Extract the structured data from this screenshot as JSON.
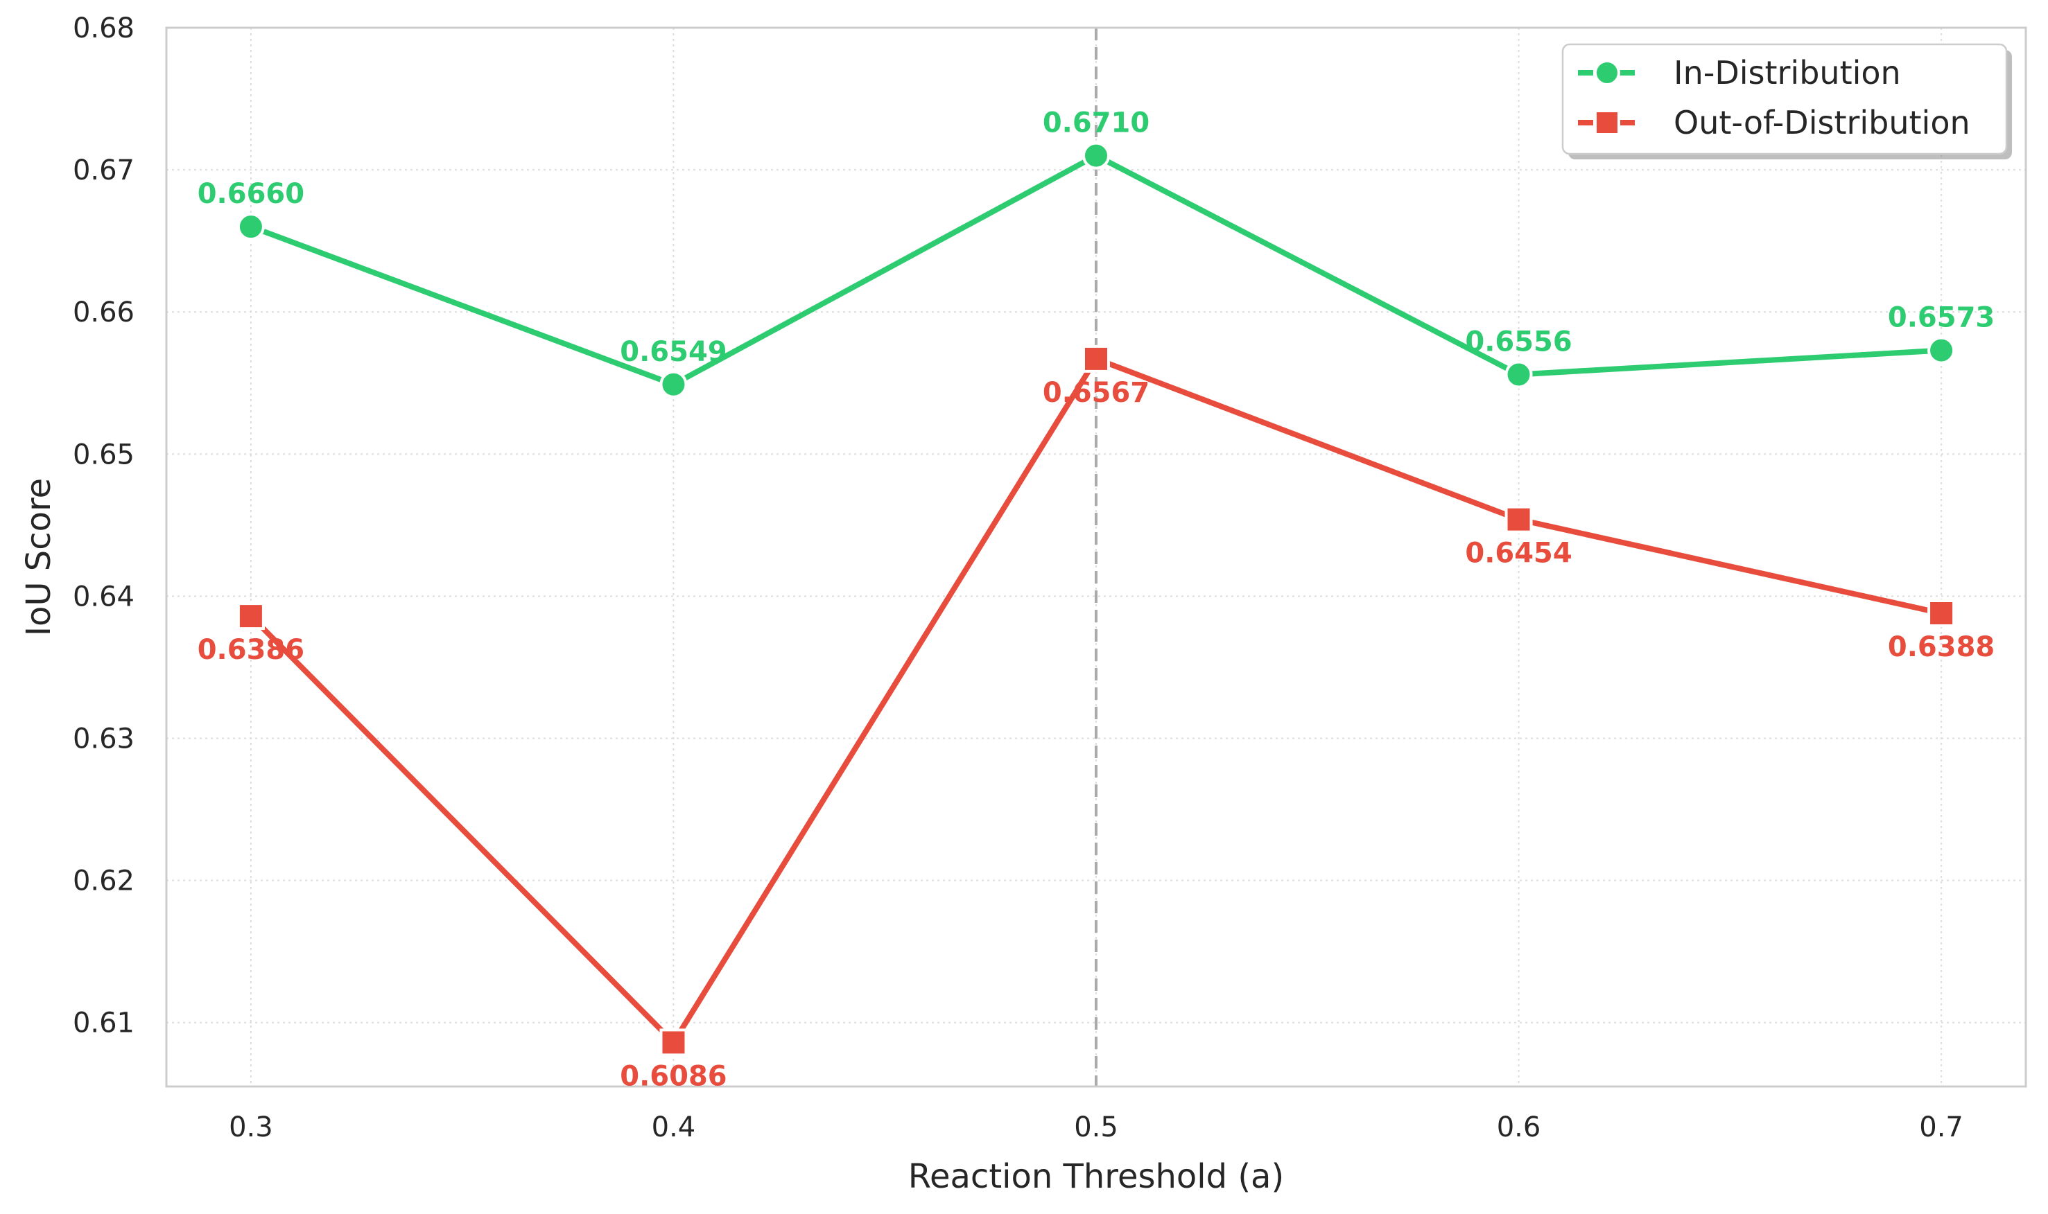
{
  "chart_data": {
    "type": "line",
    "title": "",
    "xlabel": "Reaction Threshold (a)",
    "ylabel": "IoU Score",
    "x": [
      0.3,
      0.4,
      0.5,
      0.6,
      0.7
    ],
    "x_tick_labels": [
      "0.3",
      "0.4",
      "0.5",
      "0.6",
      "0.7"
    ],
    "xlim": [
      0.28,
      0.72
    ],
    "ylim": [
      0.6055,
      0.68
    ],
    "y_ticks": [
      0.61,
      0.62,
      0.63,
      0.64,
      0.65,
      0.66,
      0.67,
      0.68
    ],
    "y_tick_labels": [
      "0.61",
      "0.62",
      "0.63",
      "0.64",
      "0.65",
      "0.66",
      "0.67",
      "0.68"
    ],
    "grid": true,
    "grid_style": "dotted",
    "reference_line": {
      "x": 0.5,
      "style": "dashed",
      "color": "#aaaaaa"
    },
    "legend_position": "top-right",
    "series": [
      {
        "name": "In-Distribution",
        "color": "#2ecc71",
        "marker": "circle",
        "values": [
          0.666,
          0.6549,
          0.671,
          0.6556,
          0.6573
        ],
        "labels": [
          "0.6660",
          "0.6549",
          "0.6710",
          "0.6556",
          "0.6573"
        ],
        "label_placement": "above"
      },
      {
        "name": "Out-of-Distribution",
        "color": "#e74c3c",
        "marker": "square",
        "values": [
          0.6386,
          0.6086,
          0.6567,
          0.6454,
          0.6388
        ],
        "labels": [
          "0.6386",
          "0.6086",
          "0.6567",
          "0.6454",
          "0.6388"
        ],
        "label_placement": "below"
      }
    ]
  }
}
